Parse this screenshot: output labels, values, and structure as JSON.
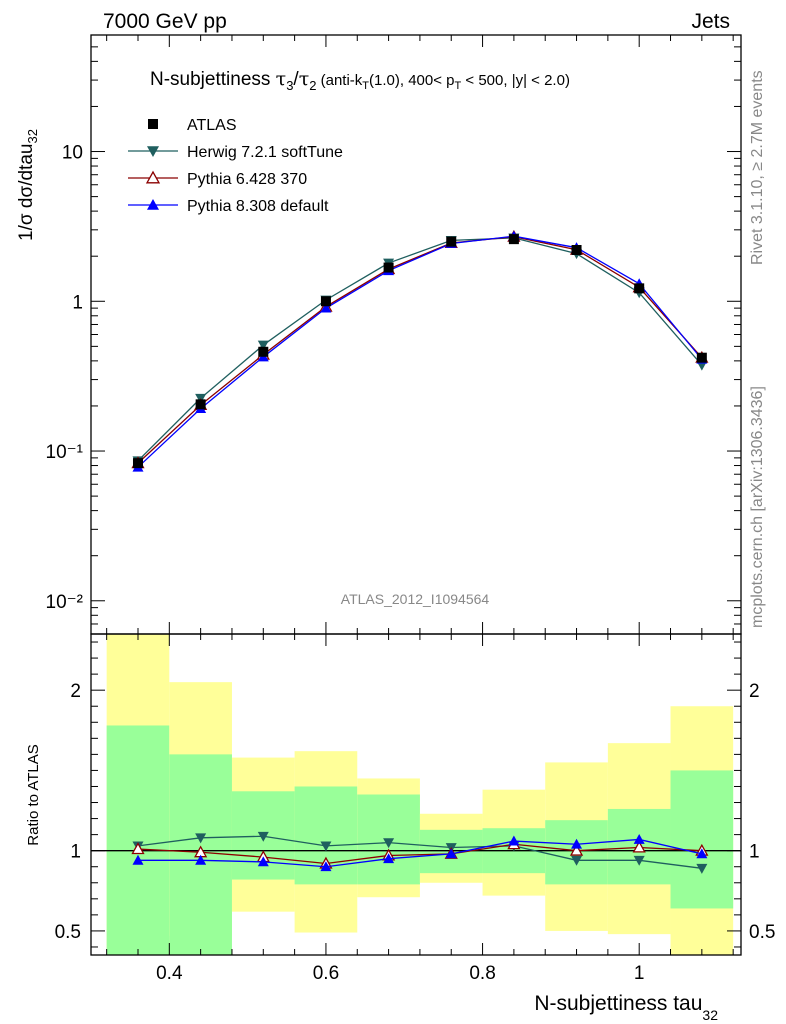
{
  "header": {
    "left": "7000 GeV pp",
    "right": "Jets"
  },
  "side": {
    "rivet": "Rivet 3.1.10, ≥ 2.7M events",
    "mcplots": "mcplots.cern.ch [arXiv:1306.3436]"
  },
  "analysis_id": "ATLAS_2012_I1094564",
  "main_title": {
    "lead": "N-subjettiness ",
    "tau": "τ",
    "n3": "3",
    "slash": "/",
    "n2": "2",
    "paren1": " (anti-k",
    "subT": "T",
    "paren2": "(1.0), 400< p",
    "subT2": "T",
    "paren3": " < 500, |y| < 2.0)"
  },
  "ylabel_main": {
    "text": "1/σ dσ/dtau",
    "sub": "32"
  },
  "ylabel_ratio": "Ratio to ATLAS",
  "xlabel": {
    "text": "N-subjettiness tau",
    "sub": "32"
  },
  "colors": {
    "atlas": "#000000",
    "herwig": "#1f5f5f",
    "pythia6": "#8b0000",
    "pythia8": "#0000ff",
    "band_inner": "#99ff99",
    "band_outer": "#ffff99"
  },
  "chart_data": {
    "type": "line",
    "x_axis": {
      "range": [
        0.3,
        1.13
      ],
      "ticks": [
        0.4,
        0.6,
        0.8,
        1.0
      ],
      "tick_labels": [
        "0.4",
        "0.6",
        "0.8",
        "1"
      ]
    },
    "y_axis_main": {
      "scale": "log",
      "range": [
        0.006,
        60
      ],
      "tick_labels": [
        "10⁻²",
        "10⁻¹",
        "1",
        "10"
      ]
    },
    "y_axis_ratio": {
      "range": [
        0.35,
        2.35
      ],
      "ticks": [
        0.5,
        1,
        2
      ],
      "tick_labels": [
        "0.5",
        "1",
        "2"
      ]
    },
    "x": [
      0.36,
      0.44,
      0.52,
      0.6,
      0.68,
      0.76,
      0.84,
      0.92,
      1.0,
      1.08
    ],
    "bin_edges": [
      0.32,
      0.4,
      0.48,
      0.56,
      0.64,
      0.72,
      0.8,
      0.88,
      0.96,
      1.04,
      1.12
    ],
    "series": [
      {
        "name": "ATLAS",
        "values": [
          0.083,
          0.205,
          0.46,
          1.0,
          1.68,
          2.5,
          2.6,
          2.2,
          1.22,
          0.42
        ]
      },
      {
        "name": "Herwig 7.2.1 softTune",
        "values": [
          0.086,
          0.225,
          0.51,
          1.02,
          1.8,
          2.55,
          2.65,
          2.08,
          1.14,
          0.375
        ]
      },
      {
        "name": "Pythia 6.428 370",
        "values": [
          0.083,
          0.203,
          0.44,
          0.92,
          1.64,
          2.45,
          2.7,
          2.21,
          1.24,
          0.42
        ]
      },
      {
        "name": "Pythia 8.308 default",
        "values": [
          0.078,
          0.192,
          0.425,
          0.9,
          1.6,
          2.43,
          2.72,
          2.28,
          1.31,
          0.41
        ]
      }
    ],
    "ratio_series": [
      {
        "name": "Herwig 7.2.1 softTune",
        "values": [
          1.03,
          1.08,
          1.09,
          1.03,
          1.05,
          1.02,
          1.03,
          0.94,
          0.94,
          0.89
        ]
      },
      {
        "name": "Pythia 6.428 370",
        "values": [
          1.01,
          0.99,
          0.96,
          0.92,
          0.97,
          0.98,
          1.04,
          1.0,
          1.02,
          1.0
        ]
      },
      {
        "name": "Pythia 8.308 default",
        "values": [
          0.94,
          0.94,
          0.93,
          0.9,
          0.95,
          0.98,
          1.06,
          1.04,
          1.07,
          0.98
        ]
      }
    ],
    "band_inner": {
      "low": [
        0.0,
        0.0,
        0.82,
        0.79,
        0.79,
        0.86,
        0.86,
        0.79,
        0.79,
        0.64
      ],
      "high": [
        1.78,
        1.6,
        1.37,
        1.4,
        1.35,
        1.13,
        1.14,
        1.19,
        1.26,
        1.5
      ]
    },
    "band_outer": {
      "low": [
        0.0,
        0.47,
        0.62,
        0.49,
        0.71,
        0.8,
        0.72,
        0.5,
        0.48,
        0.0
      ],
      "high": [
        2.5,
        2.05,
        1.58,
        1.62,
        1.45,
        1.23,
        1.38,
        1.55,
        1.67,
        1.9
      ]
    }
  }
}
